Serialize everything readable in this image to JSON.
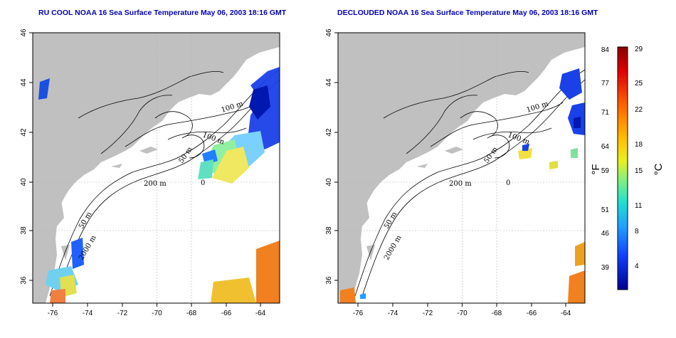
{
  "panels": [
    {
      "title": "RU COOL NOAA 16 Sea Surface Temperature May 06, 2003 18:16 GMT",
      "x_ticks": [
        "-76",
        "-74",
        "-72",
        "-70",
        "-68",
        "-66",
        "-64"
      ],
      "y_ticks": [
        "46",
        "44",
        "42",
        "40",
        "38",
        "36"
      ],
      "contour_labels": [
        "100 m",
        "100 m",
        "50 m",
        "200 m",
        "50 m",
        "2000 m",
        "0"
      ]
    },
    {
      "title": "DECLOUDED NOAA 16 Sea Surface Temperature May 06, 2003 18:16 GMT",
      "x_ticks": [
        "-76",
        "-74",
        "-72",
        "-70",
        "-68",
        "-66",
        "-64"
      ],
      "y_ticks": [
        "46",
        "44",
        "42",
        "40",
        "38",
        "36"
      ],
      "contour_labels": [
        "100 m",
        "100 m",
        "50 m",
        "200 m",
        "50 m",
        "2000 m",
        "0"
      ]
    }
  ],
  "colorbar": {
    "fahrenheit_label": "°F",
    "celsius_label": "°C",
    "fahrenheit_ticks": [
      "84",
      "77",
      "71",
      "64",
      "59",
      "51",
      "46",
      "39"
    ],
    "celsius_ticks": [
      "29",
      "25",
      "22",
      "18",
      "15",
      "11",
      "8",
      "4"
    ],
    "colors": [
      "#8b0000",
      "#ff3000",
      "#ff9a00",
      "#ffe000",
      "#a0f060",
      "#20e0d0",
      "#2080ff",
      "#0010c0"
    ]
  },
  "colors": {
    "land": "#c0c0c0",
    "ocean": "#ffffff",
    "title": "#0000b4",
    "grid": "#b4b4b4"
  }
}
